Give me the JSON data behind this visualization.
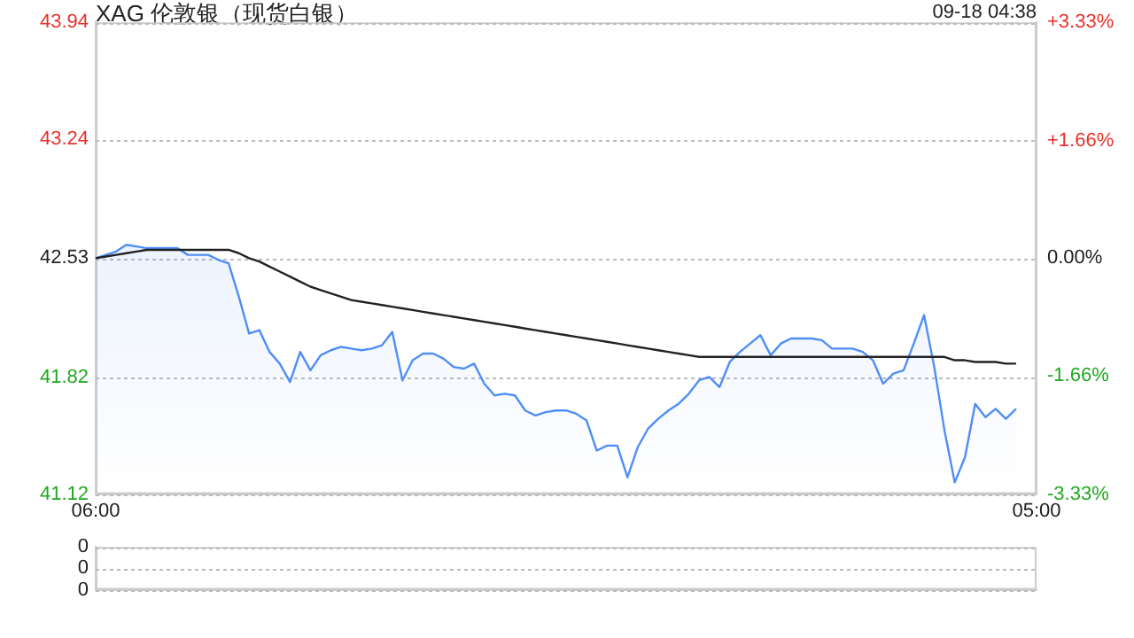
{
  "chart_data": [
    {
      "type": "line",
      "title": "XAG 伦敦银（现货白银）",
      "annotations": [
        "09-18 04:38"
      ],
      "categories": [
        "06:00",
        null,
        null,
        null,
        null,
        null,
        null,
        null,
        null,
        null,
        null,
        null,
        null,
        null,
        null,
        null,
        null,
        null,
        null,
        null,
        null,
        null,
        null,
        null,
        null,
        null,
        null,
        null,
        null,
        null,
        null,
        null,
        null,
        null,
        null,
        null,
        null,
        null,
        null,
        null,
        null,
        null,
        null,
        null,
        null,
        null,
        null,
        null,
        null,
        null,
        null,
        null,
        null,
        null,
        null,
        null,
        null,
        null,
        null,
        null,
        null,
        null,
        null,
        null,
        null,
        null,
        null,
        null,
        null,
        null,
        null,
        null,
        null,
        null,
        null,
        null,
        null,
        null,
        null,
        null,
        null,
        null,
        null,
        null,
        null,
        null,
        null,
        null,
        null,
        null,
        null,
        null,
        "05:00"
      ],
      "ylim": [
        41.12,
        43.94
      ],
      "yticks": [
        41.12,
        41.82,
        42.53,
        43.24,
        43.94
      ],
      "y2lim": [
        -3.33,
        3.33
      ],
      "y2ticks": [
        {
          "value": -3.33,
          "label": "-3.33%"
        },
        {
          "value": -1.66,
          "label": "-1.66%"
        },
        {
          "value": 0,
          "label": "0.00%"
        },
        {
          "value": 1.66,
          "label": "+1.66%"
        },
        {
          "value": 3.33,
          "label": "+3.33%"
        }
      ],
      "grid": "y",
      "marker": "none",
      "legend": false,
      "series": [
        {
          "type": "area",
          "color": "#4f8ef5",
          "values": [
            42.53,
            42.55,
            42.57,
            42.61,
            42.6,
            42.59,
            42.59,
            42.59,
            42.59,
            42.55,
            42.55,
            42.55,
            42.52,
            42.5,
            42.3,
            42.08,
            42.1,
            41.97,
            41.9,
            41.79,
            41.97,
            41.86,
            41.95,
            41.98,
            42.0,
            41.99,
            41.98,
            41.99,
            42.01,
            42.09,
            41.8,
            41.92,
            41.96,
            41.96,
            41.93,
            41.88,
            41.87,
            41.9,
            41.78,
            41.71,
            41.72,
            41.71,
            41.62,
            41.59,
            41.61,
            41.62,
            41.62,
            41.6,
            41.56,
            41.38,
            41.41,
            41.41,
            41.22,
            41.4,
            41.51,
            41.57,
            41.62,
            41.66,
            41.72,
            41.8,
            41.82,
            41.76,
            41.91,
            41.97,
            42.02,
            42.07,
            41.95,
            42.02,
            42.05,
            42.05,
            42.05,
            42.04,
            41.99,
            41.99,
            41.99,
            41.97,
            41.92,
            41.78,
            41.84,
            41.86,
            42.02,
            42.19,
            41.88,
            41.5,
            41.19,
            41.34,
            41.66,
            41.58,
            41.63,
            41.57,
            41.63,
            null,
            null
          ]
        },
        {
          "type": "line",
          "color": "#222222",
          "values": [
            42.53,
            42.54,
            42.55,
            42.56,
            42.57,
            42.58,
            42.58,
            42.58,
            42.58,
            42.58,
            42.58,
            42.58,
            42.58,
            42.58,
            42.56,
            42.53,
            42.51,
            42.48,
            42.45,
            42.42,
            42.39,
            42.36,
            42.34,
            42.32,
            42.3,
            42.28,
            42.27,
            42.26,
            42.25,
            42.24,
            42.23,
            42.22,
            42.21,
            42.2,
            42.19,
            42.18,
            42.17,
            42.16,
            42.15,
            42.14,
            42.13,
            42.12,
            42.11,
            42.1,
            42.09,
            42.08,
            42.07,
            42.06,
            42.05,
            42.04,
            42.03,
            42.02,
            42.01,
            42.0,
            41.99,
            41.98,
            41.97,
            41.96,
            41.95,
            41.94,
            41.94,
            41.94,
            41.94,
            41.94,
            41.94,
            41.94,
            41.94,
            41.94,
            41.94,
            41.94,
            41.94,
            41.94,
            41.94,
            41.94,
            41.94,
            41.94,
            41.94,
            41.94,
            41.94,
            41.94,
            41.94,
            41.94,
            41.94,
            41.94,
            41.92,
            41.92,
            41.91,
            41.91,
            41.91,
            41.9,
            41.9,
            null,
            null
          ]
        }
      ]
    },
    {
      "type": "bar",
      "categories": [
        null,
        null,
        null,
        null,
        null,
        null,
        null,
        null,
        null,
        null,
        null,
        null,
        null,
        null,
        null,
        null,
        null,
        null,
        null,
        null,
        null,
        null,
        null,
        null,
        null,
        null,
        null,
        null,
        null,
        null,
        null,
        null,
        null,
        null,
        null,
        null,
        null,
        null,
        null,
        null,
        null,
        null,
        null,
        null,
        null,
        null,
        null,
        null,
        null,
        null,
        null,
        null,
        null,
        null,
        null,
        null,
        null,
        null,
        null,
        null,
        null,
        null,
        null,
        null,
        null,
        null,
        null,
        null,
        null,
        null,
        null,
        null,
        null,
        null,
        null,
        null,
        null,
        null,
        null,
        null,
        null,
        null,
        null,
        null,
        null,
        null,
        null,
        null,
        null,
        null,
        null,
        null,
        null
      ],
      "values": [
        0,
        0,
        0,
        0,
        0,
        0,
        0,
        0,
        0,
        0,
        0,
        0,
        0,
        0,
        0,
        0,
        0,
        0,
        0,
        0,
        0,
        0,
        0,
        0,
        0,
        0,
        0,
        0,
        0,
        0,
        0,
        0,
        0,
        0,
        0,
        0,
        0,
        0,
        0,
        0,
        0,
        0,
        0,
        0,
        0,
        0,
        0,
        0,
        0,
        0,
        0,
        0,
        0,
        0,
        0,
        0,
        0,
        0,
        0,
        0,
        0,
        0,
        0,
        0,
        0,
        0,
        0,
        0,
        0,
        0,
        0,
        0,
        0,
        0,
        0,
        0,
        0,
        0,
        0,
        0,
        0,
        0,
        0,
        0,
        0,
        0,
        0,
        0,
        0,
        0,
        0,
        null,
        null
      ],
      "ylim": [
        -0.4,
        0.4
      ],
      "yticks": [
        {
          "value": -0.4,
          "label": "0"
        },
        {
          "value": 0,
          "label": "0"
        },
        {
          "value": 0.4,
          "label": "0"
        }
      ],
      "grid": "y",
      "legend": false
    }
  ]
}
